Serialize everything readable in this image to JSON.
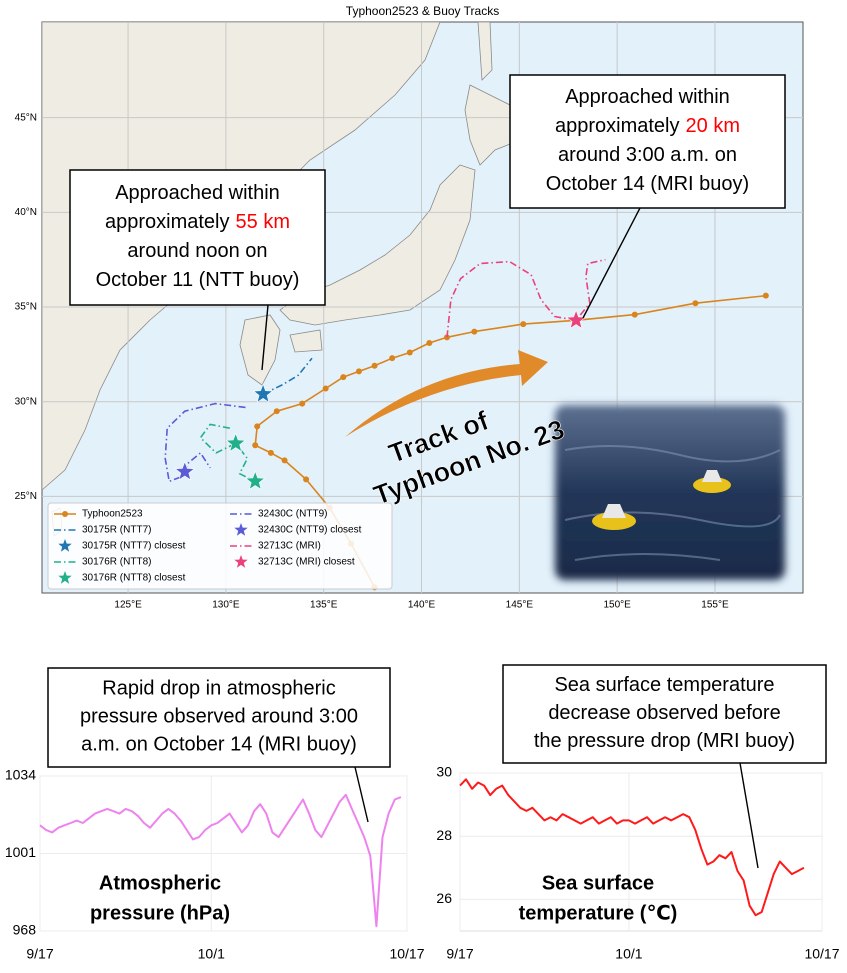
{
  "chart_data": [
    {
      "type": "line",
      "title": "Typhoon2523 & Buoy Tracks",
      "xlim": [
        120.6,
        159.5
      ],
      "ylim": [
        19.9,
        50.05
      ],
      "xticks": [
        {
          "value": 125,
          "label": "125°E"
        },
        {
          "value": 130,
          "label": "130°E"
        },
        {
          "value": 135,
          "label": "135°E"
        },
        {
          "value": 140,
          "label": "140°E"
        },
        {
          "value": 145,
          "label": "145°E"
        },
        {
          "value": 150,
          "label": "150°E"
        },
        {
          "value": 155,
          "label": "155°E"
        }
      ],
      "yticks": [
        {
          "value": 25,
          "label": "25°N"
        },
        {
          "value": 30,
          "label": "30°N"
        },
        {
          "value": 35,
          "label": "35°N"
        },
        {
          "value": 40,
          "label": "40°N"
        },
        {
          "value": 45,
          "label": "45°N"
        }
      ],
      "grid": true,
      "legend": "lower left",
      "series": [
        {
          "name": "Typhoon2523",
          "color": "#d9841c",
          "style": "solid",
          "marker": "circle",
          "x": [
            137.6,
            136.4,
            135.3,
            134.1,
            133.0,
            132.3,
            131.5,
            131.6,
            132.6,
            133.9,
            135.1,
            136.0,
            136.8,
            137.6,
            138.5,
            139.4,
            140.4,
            141.3,
            142.7,
            145.2,
            147.9,
            150.9,
            154.0,
            157.6
          ],
          "values": [
            20.2,
            22.5,
            24.4,
            25.9,
            26.9,
            27.3,
            27.7,
            28.7,
            29.5,
            29.9,
            30.7,
            31.3,
            31.6,
            31.9,
            32.3,
            32.6,
            33.1,
            33.4,
            33.7,
            34.1,
            34.3,
            34.6,
            35.2,
            35.6
          ]
        },
        {
          "name": "30175R (NTT7)",
          "color": "#1f77b4",
          "style": "dashdot",
          "marker": "none",
          "x": [
            131.9,
            132.9,
            133.7,
            134.4
          ],
          "values": [
            30.4,
            30.9,
            31.4,
            32.3
          ]
        },
        {
          "name": "30175R (NTT7) closest",
          "color": "#1f77b4",
          "style": "none",
          "marker": "star",
          "x": [
            131.9
          ],
          "values": [
            30.4
          ]
        },
        {
          "name": "30176R (NTT8)",
          "color": "#22b08a",
          "style": "dashdot",
          "marker": "none",
          "x": [
            130.2,
            129.2,
            128.7,
            129.5,
            130.5,
            131.1,
            130.7,
            131.5
          ],
          "values": [
            28.6,
            28.8,
            28.1,
            27.3,
            27.8,
            27.0,
            26.2,
            25.8
          ]
        },
        {
          "name": "30176R (NTT8) closest",
          "color": "#22b08a",
          "style": "none",
          "marker": "star",
          "x": [
            130.5,
            131.5
          ],
          "values": [
            27.8,
            25.8
          ]
        },
        {
          "name": "32430C (NTT9)",
          "color": "#5b5bd6",
          "style": "dashdot",
          "marker": "none",
          "x": [
            131.0,
            129.45,
            127.9,
            127.0,
            126.9,
            127.1,
            127.9,
            128.0,
            128.7,
            129.2
          ],
          "values": [
            29.7,
            29.9,
            29.5,
            28.6,
            27.0,
            25.8,
            26.1,
            26.7,
            27.3,
            26.5
          ]
        },
        {
          "name": "32430C (NTT9) closest",
          "color": "#5b5bd6",
          "style": "none",
          "marker": "star",
          "x": [
            127.9
          ],
          "values": [
            26.3
          ]
        },
        {
          "name": "32713C (MRI)",
          "color": "#e8437a",
          "style": "dashdot",
          "marker": "none",
          "x": [
            141.3,
            141.5,
            142.0,
            143.0,
            144.5,
            145.6,
            146.1,
            146.8,
            147.9,
            148.6,
            148.4,
            148.5,
            149.4
          ],
          "values": [
            33.4,
            35.4,
            36.5,
            37.3,
            37.4,
            36.7,
            35.4,
            34.5,
            34.3,
            35.2,
            36.6,
            37.3,
            37.5
          ]
        },
        {
          "name": "32713C (MRI) closest",
          "color": "#e8437a",
          "style": "none",
          "marker": "star",
          "x": [
            147.9
          ],
          "values": [
            34.3
          ]
        }
      ],
      "annotations": [
        {
          "lines": [
            {
              "text": "Approached within"
            },
            {
              "text": "approximately",
              "highlight": "55 km"
            },
            {
              "text": "around noon on"
            },
            {
              "text": "October 11 (NTT buoy)"
            }
          ],
          "highlight_color": "#ff0000"
        },
        {
          "lines": [
            {
              "text": "Approached within"
            },
            {
              "text": "approximately",
              "highlight": "20 km"
            },
            {
              "text": "around 3:00 a.m. on"
            },
            {
              "text": "October 14 (MRI buoy)"
            }
          ],
          "highlight_color": "#ff0000"
        },
        {
          "lines": [
            {
              "text": "Track of"
            },
            {
              "text": "Typhoon No. 23"
            }
          ],
          "color": "#e08a2a"
        }
      ]
    },
    {
      "type": "line",
      "xlim": [
        0,
        30
      ],
      "ylim": [
        968,
        1034
      ],
      "yticks": [
        968,
        1001,
        1034
      ],
      "xticks": [
        {
          "value": 0,
          "label": "9/17"
        },
        {
          "value": 14,
          "label": "10/1"
        },
        {
          "value": 30,
          "label": "10/17"
        }
      ],
      "grid": true,
      "label_lines": [
        "Atmospheric",
        "pressure (hPa)"
      ],
      "x": [
        0,
        0.5,
        1,
        1.5,
        2,
        2.5,
        3,
        3.5,
        4,
        4.5,
        5,
        5.5,
        6,
        6.5,
        7,
        7.5,
        8,
        8.5,
        9,
        9.5,
        10,
        10.5,
        11,
        11.5,
        12,
        12.5,
        13,
        13.5,
        14,
        14.5,
        15,
        15.5,
        16,
        16.5,
        17,
        17.5,
        18,
        18.5,
        19,
        19.5,
        20,
        20.5,
        21,
        21.5,
        22,
        22.5,
        23,
        23.5,
        24,
        24.5,
        25,
        25.5,
        26,
        26.5,
        27,
        27.5,
        28,
        28.5,
        29,
        29.5
      ],
      "series": [
        {
          "color": "#ee82ee",
          "style": "solid",
          "marker": "none",
          "values": [
            1013,
            1011,
            1010,
            1012,
            1013,
            1014,
            1015,
            1014,
            1016,
            1018,
            1019,
            1020,
            1019,
            1018,
            1020,
            1019,
            1017,
            1014,
            1012,
            1015,
            1018,
            1020,
            1018,
            1015,
            1011,
            1007,
            1008,
            1011,
            1013,
            1014,
            1016,
            1018,
            1014,
            1010,
            1013,
            1019,
            1022,
            1018,
            1010,
            1008,
            1012,
            1016,
            1020,
            1024,
            1018,
            1011,
            1008,
            1013,
            1018,
            1023,
            1026,
            1020,
            1014,
            1008,
            1000,
            970,
            1008,
            1018,
            1024,
            1025
          ]
        }
      ],
      "annotations": [
        {
          "lines": [
            {
              "text": "Rapid drop in atmospheric"
            },
            {
              "text": "pressure observed around 3:00"
            },
            {
              "text": "a.m. on October 14 (MRI buoy)"
            }
          ]
        }
      ]
    },
    {
      "type": "line",
      "xlim": [
        0,
        30
      ],
      "ylim": [
        25,
        30
      ],
      "yticks": [
        26,
        28,
        30
      ],
      "xticks": [
        {
          "value": 0,
          "label": "9/17"
        },
        {
          "value": 14,
          "label": "10/1"
        },
        {
          "value": 30,
          "label": "10/17"
        }
      ],
      "grid": true,
      "label_lines": [
        "Sea surface",
        "temperature (℃)"
      ],
      "x": [
        0,
        0.5,
        1,
        1.5,
        2,
        2.5,
        3,
        3.5,
        4,
        4.5,
        5,
        5.5,
        6,
        6.5,
        7,
        7.5,
        8,
        8.5,
        9,
        9.5,
        10,
        10.5,
        11,
        11.5,
        12,
        12.5,
        13,
        13.5,
        14,
        14.5,
        15,
        15.5,
        16,
        16.5,
        17,
        17.5,
        18,
        18.5,
        19,
        19.5,
        20,
        20.5,
        21,
        21.5,
        22,
        22.5,
        23,
        23.5,
        24,
        24.5,
        25,
        25.5,
        26,
        26.5,
        27,
        27.5,
        28,
        28.5
      ],
      "series": [
        {
          "color": "#ff1a1a",
          "style": "solid",
          "marker": "none",
          "values": [
            29.6,
            29.8,
            29.5,
            29.7,
            29.6,
            29.3,
            29.5,
            29.6,
            29.3,
            29.1,
            28.9,
            28.8,
            28.9,
            28.7,
            28.5,
            28.6,
            28.5,
            28.7,
            28.6,
            28.5,
            28.4,
            28.5,
            28.6,
            28.4,
            28.5,
            28.6,
            28.4,
            28.5,
            28.5,
            28.4,
            28.5,
            28.6,
            28.4,
            28.5,
            28.6,
            28.5,
            28.6,
            28.7,
            28.6,
            28.2,
            27.6,
            27.1,
            27.2,
            27.4,
            27.3,
            27.5,
            26.9,
            26.6,
            25.8,
            25.5,
            25.6,
            26.2,
            26.8,
            27.2,
            27.0,
            26.8,
            26.9,
            27.0
          ]
        }
      ],
      "annotations": [
        {
          "lines": [
            {
              "text": "Sea surface temperature"
            },
            {
              "text": "decrease observed before"
            },
            {
              "text": "the pressure drop (MRI buoy)"
            }
          ]
        }
      ]
    }
  ]
}
